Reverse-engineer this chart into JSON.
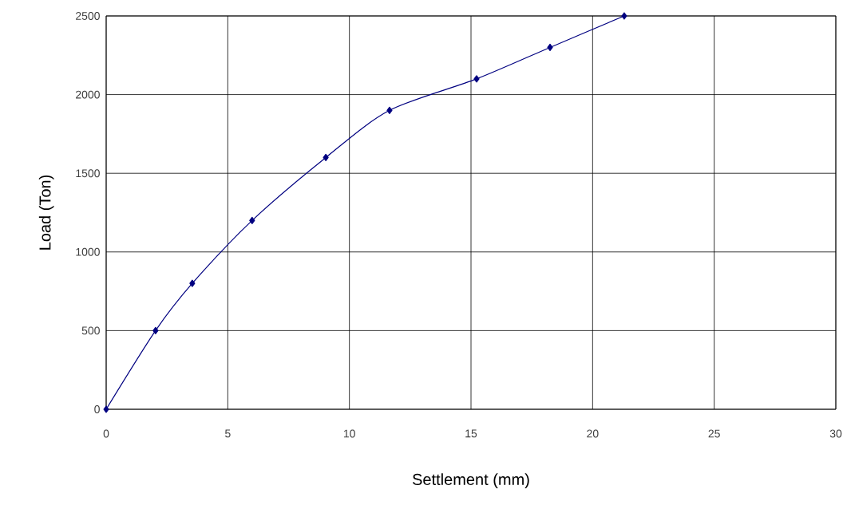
{
  "chart_data": {
    "type": "line",
    "xlabel": "Settlement (mm)",
    "ylabel": "Load (Ton)",
    "x": [
      0,
      2.03,
      3.54,
      6.0,
      9.03,
      11.65,
      15.23,
      18.25,
      21.3
    ],
    "series": [
      {
        "color": "#000080",
        "values": [
          0,
          500,
          800,
          1200,
          1600,
          1900,
          2100,
          2300,
          2500
        ]
      }
    ],
    "xlim": [
      0,
      30
    ],
    "xticks": [
      0,
      5,
      10,
      15,
      20,
      25,
      30
    ],
    "ylim": [
      0,
      2500
    ],
    "yticks": [
      0,
      500,
      1000,
      1500,
      2000,
      2500
    ],
    "grid": true,
    "marker": "diamond",
    "line_style": "solid"
  }
}
